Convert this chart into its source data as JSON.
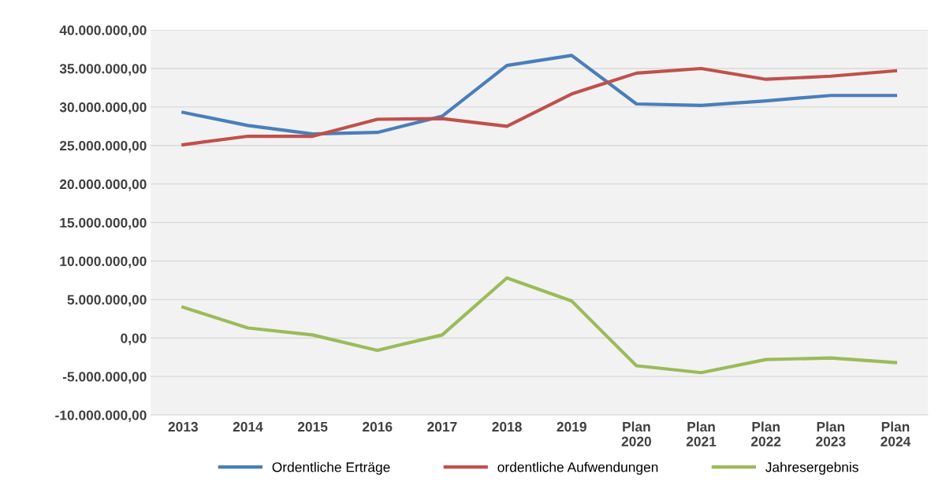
{
  "chart_data": {
    "type": "line",
    "categories": [
      "2013",
      "2014",
      "2015",
      "2016",
      "2017",
      "2018",
      "2019",
      "Plan\n2020",
      "Plan\n2021",
      "Plan\n2022",
      "Plan\n2023",
      "Plan\n2024"
    ],
    "series": [
      {
        "name": "Ordentliche Erträge",
        "color": "#4a7ebb",
        "values": [
          29300000,
          27600000,
          26500000,
          26700000,
          28800000,
          35400000,
          36700000,
          30400000,
          30200000,
          30800000,
          31500000,
          31500000
        ]
      },
      {
        "name": "ordentliche Aufwendungen",
        "color": "#c0504d",
        "values": [
          25100000,
          26200000,
          26200000,
          28400000,
          28500000,
          27500000,
          31700000,
          34400000,
          35000000,
          33600000,
          34000000,
          34700000
        ]
      },
      {
        "name": "Jahresergebnis",
        "color": "#9bbb59",
        "values": [
          4000000,
          1300000,
          400000,
          -1600000,
          400000,
          7800000,
          4800000,
          -3600000,
          -4500000,
          -2800000,
          -2600000,
          -3200000
        ]
      }
    ],
    "ylim": [
      -10000000,
      40000000
    ],
    "yticks": [
      {
        "value": -10000000,
        "label": "-10.000.000,00"
      },
      {
        "value": -5000000,
        "label": "-5.000.000,00"
      },
      {
        "value": 0,
        "label": "0,00"
      },
      {
        "value": 5000000,
        "label": "5.000.000,00"
      },
      {
        "value": 10000000,
        "label": "10.000.000,00"
      },
      {
        "value": 15000000,
        "label": "15.000.000,00"
      },
      {
        "value": 20000000,
        "label": "20.000.000,00"
      },
      {
        "value": 25000000,
        "label": "25.000.000,00"
      },
      {
        "value": 30000000,
        "label": "30.000.000,00"
      },
      {
        "value": 35000000,
        "label": "35.000.000,00"
      },
      {
        "value": 40000000,
        "label": "40.000.000,00"
      }
    ],
    "grid": "y",
    "legend": "bottom",
    "marker": "none",
    "line_style": "solid"
  }
}
